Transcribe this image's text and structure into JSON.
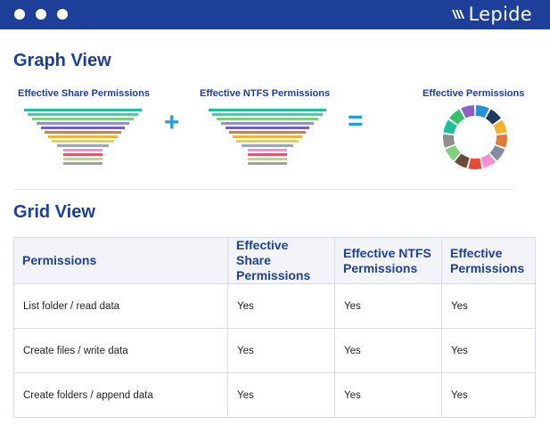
{
  "brand": {
    "name": "Lepide",
    "bar_color": "#1d3f9a"
  },
  "graph_view": {
    "title": "Graph View",
    "share_caption": "Effective Share Permissions",
    "ntfs_caption": "Effective NTFS Permissions",
    "effective_caption": "Effective Permissions",
    "plus_symbol": "+",
    "equals_symbol": "=",
    "funnel_colors": [
      "#1fbf9a",
      "#2fd6b0",
      "#7fd27a",
      "#8f8fe8",
      "#6f63c9",
      "#e07b3a",
      "#f2b232",
      "#f2cf3a",
      "#9aa7ba",
      "#f28fd6",
      "#e8546e",
      "#b6e078",
      "#a0a0a0"
    ],
    "donut_colors": [
      "#2a8fd6",
      "#1f3b5a",
      "#f2b232",
      "#e07b3a",
      "#7f8ea3",
      "#f28fd6",
      "#e84a3a",
      "#6b4a3a",
      "#7fd27a",
      "#8f8f8f",
      "#1fbf9a",
      "#3ac06a",
      "#8f5fc9"
    ]
  },
  "grid_view": {
    "title": "Grid View",
    "columns": [
      "Permissions",
      "Effective Share Permissions",
      "Effective NTFS Permissions",
      "Effective Permissions"
    ],
    "rows": [
      {
        "permission": "List folder / read data",
        "share": "Yes",
        "ntfs": "Yes",
        "effective": "Yes"
      },
      {
        "permission": "Create files / write data",
        "share": "Yes",
        "ntfs": "Yes",
        "effective": "Yes"
      },
      {
        "permission": "Create folders / append data",
        "share": "Yes",
        "ntfs": "Yes",
        "effective": "Yes"
      }
    ]
  }
}
